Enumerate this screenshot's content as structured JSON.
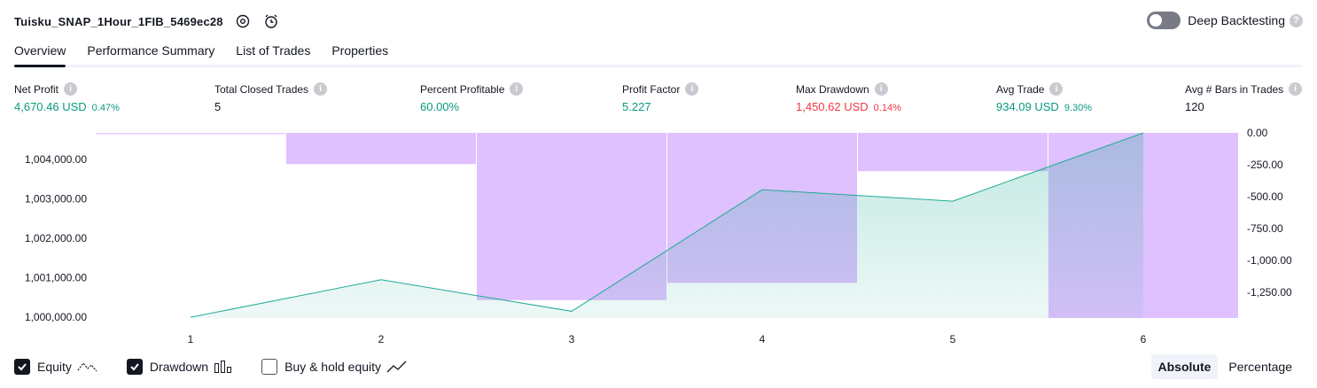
{
  "header": {
    "title": "Tuisku_SNAP_1Hour_1FIB_5469ec28",
    "deep_backtesting_label": "Deep Backtesting",
    "help_glyph": "?"
  },
  "tabs": [
    {
      "label": "Overview",
      "active": true
    },
    {
      "label": "Performance Summary",
      "active": false
    },
    {
      "label": "List of Trades",
      "active": false
    },
    {
      "label": "Properties",
      "active": false
    }
  ],
  "metrics": {
    "net_profit": {
      "label": "Net Profit",
      "value": "4,670.46 USD",
      "sub": "0.47%"
    },
    "total_closed_trades": {
      "label": "Total Closed Trades",
      "value": "5"
    },
    "percent_profitable": {
      "label": "Percent Profitable",
      "value": "60.00%"
    },
    "profit_factor": {
      "label": "Profit Factor",
      "value": "5.227"
    },
    "max_drawdown": {
      "label": "Max Drawdown",
      "value": "1,450.62 USD",
      "sub": "0.14%"
    },
    "avg_trade": {
      "label": "Avg Trade",
      "value": "934.09 USD",
      "sub": "9.30%"
    },
    "avg_bars": {
      "label": "Avg # Bars in Trades",
      "value": "120"
    }
  },
  "info_glyph": "i",
  "colors": {
    "positive": "#089981",
    "negative": "#f23645",
    "equity_line": "#22ab94",
    "drawdown_fill": "#d1a6ff"
  },
  "chart_data": {
    "type": "line",
    "x": [
      1,
      2,
      3,
      4,
      5,
      6
    ],
    "x_tick_labels": [
      "1",
      "2",
      "3",
      "4",
      "5",
      "6"
    ],
    "series": [
      {
        "name": "Equity",
        "axis": "left",
        "values": [
          1000000,
          1000950,
          1000150,
          1003230,
          1002940,
          1004670
        ]
      },
      {
        "name": "Drawdown",
        "axis": "right",
        "type": "bar",
        "values": [
          -10,
          -245,
          -1310,
          -1175,
          -300,
          -1450
        ]
      }
    ],
    "left_axis": {
      "ticks": [
        1000000,
        1001000,
        1002000,
        1003000,
        1004000
      ],
      "tick_labels": [
        "1,000,000.00",
        "1,001,000.00",
        "1,002,000.00",
        "1,003,000.00",
        "1,004,000.00"
      ],
      "range": [
        999980,
        1004670
      ]
    },
    "right_axis": {
      "ticks": [
        0,
        -250,
        -500,
        -750,
        -1000,
        -1250
      ],
      "tick_labels": [
        "0.00",
        "-250.00",
        "-500.00",
        "-750.00",
        "-1,000.00",
        "-1,250.00"
      ],
      "range": [
        -1450,
        0
      ]
    }
  },
  "legend": [
    {
      "label": "Equity",
      "checked": true,
      "icon": "equity-line-icon"
    },
    {
      "label": "Drawdown",
      "checked": true,
      "icon": "drawdown-bars-icon"
    },
    {
      "label": "Buy & hold equity",
      "checked": false,
      "icon": "buy-hold-line-icon"
    }
  ],
  "modes": [
    {
      "label": "Absolute",
      "active": true
    },
    {
      "label": "Percentage",
      "active": false
    }
  ]
}
